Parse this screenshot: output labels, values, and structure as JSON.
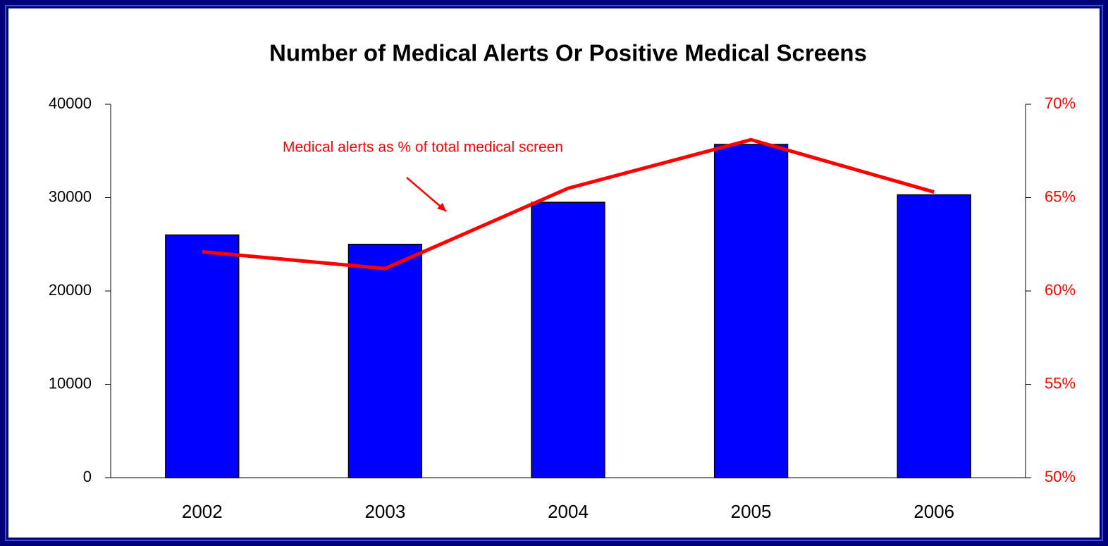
{
  "chart_data": {
    "type": "bar",
    "title": "Number of Medical Alerts Or Positive Medical Screens",
    "annotation": "Medical alerts as % of total medical screen",
    "categories": [
      "2002",
      "2003",
      "2004",
      "2005",
      "2006"
    ],
    "series": [
      {
        "type": "bar",
        "color": "#0000ff",
        "values": [
          26000,
          25000,
          29500,
          35700,
          30300
        ]
      },
      {
        "type": "line",
        "axis": "y2",
        "color": "#ff0000",
        "values": [
          62.1,
          61.2,
          65.5,
          68.1,
          65.3
        ]
      }
    ],
    "ylim": [
      0,
      40000
    ],
    "yticks": [
      0,
      10000,
      20000,
      30000,
      40000
    ],
    "y2lim": [
      50,
      70
    ],
    "y2ticks": [
      {
        "value": 50,
        "label": "50%"
      },
      {
        "value": 55,
        "label": "55%"
      },
      {
        "value": 60,
        "label": "60%"
      },
      {
        "value": 65,
        "label": "65%"
      },
      {
        "value": 70,
        "label": "70%"
      }
    ],
    "y2color": "#ff0000"
  }
}
